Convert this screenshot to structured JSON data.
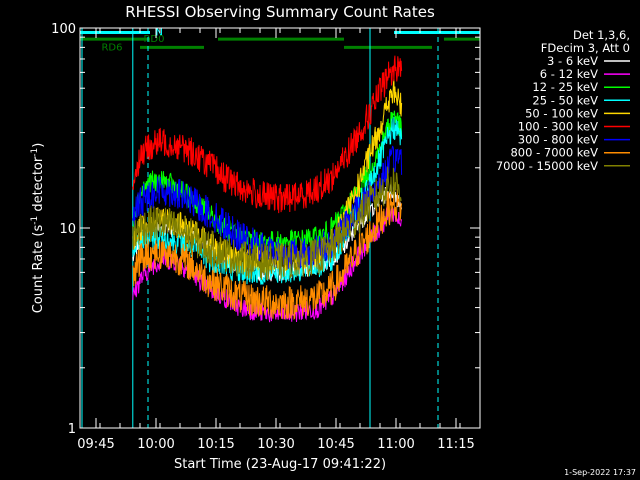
{
  "chart_data": {
    "type": "line",
    "title": "RHESSI Observing Summary Count Rates",
    "xlabel": "Start Time (23-Aug-17 09:41:22)",
    "ylabel_main": "Count Rate (s",
    "ylabel_sup1": "-1",
    "ylabel_mid": " detector",
    "ylabel_sup2": "-1",
    "ylabel_end": ")",
    "yscale": "log",
    "ylim": [
      1,
      100
    ],
    "y_ticks": [
      {
        "value": 1,
        "label": "1"
      },
      {
        "value": 10,
        "label": "10"
      },
      {
        "value": 100,
        "label": "100"
      }
    ],
    "xlim_minutes": [
      0,
      100
    ],
    "x_ticks": [
      {
        "minute": 4,
        "label": "09:45"
      },
      {
        "minute": 19,
        "label": "10:00"
      },
      {
        "minute": 34,
        "label": "10:15"
      },
      {
        "minute": 49,
        "label": "10:30"
      },
      {
        "minute": 64,
        "label": "10:45"
      },
      {
        "minute": 79,
        "label": "11:00"
      },
      {
        "minute": 94,
        "label": "11:15"
      }
    ],
    "legend_header": [
      "Det 1,3,6,",
      "FDecim 3, Att 0"
    ],
    "legend_position": "right",
    "data_x_range": [
      13.2,
      80.5
    ],
    "series": [
      {
        "name": "3 - 6 keV",
        "color": "#ffffff",
        "x": [
          13.2,
          15,
          18,
          21,
          24,
          28,
          32,
          36,
          40,
          45,
          50,
          55,
          60,
          63,
          66,
          69,
          72,
          75,
          77,
          78.5,
          79.5,
          80.5
        ],
        "y": [
          7,
          9,
          10,
          10,
          10,
          9,
          8,
          7,
          6.5,
          6,
          6,
          6.2,
          6.5,
          7,
          8,
          10,
          12,
          14,
          15,
          15.5,
          14,
          13
        ]
      },
      {
        "name": "6 - 12 keV",
        "color": "#ff00ff",
        "x": [
          13.2,
          15,
          18,
          21,
          24,
          28,
          32,
          36,
          40,
          45,
          50,
          55,
          60,
          63,
          66,
          69,
          72,
          75,
          77,
          78.5,
          79.5,
          80.5
        ],
        "y": [
          4.5,
          5.5,
          6.5,
          7,
          6.8,
          6,
          5,
          4.5,
          4,
          3.8,
          3.7,
          3.8,
          4,
          4.5,
          5.5,
          7,
          8.5,
          10,
          11.5,
          12,
          11,
          10
        ]
      },
      {
        "name": "12 - 25 keV",
        "color": "#00ff00",
        "x": [
          13.2,
          15,
          18,
          21,
          24,
          28,
          32,
          36,
          40,
          45,
          50,
          55,
          60,
          63,
          66,
          69,
          72,
          75,
          77,
          78.5,
          79.5,
          80.5
        ],
        "y": [
          11,
          15,
          17,
          17,
          16,
          14,
          12,
          10,
          9,
          8.5,
          8.5,
          8.7,
          9,
          10,
          12,
          15,
          19,
          25,
          32,
          38,
          34,
          30
        ]
      },
      {
        "name": "25 - 50 keV",
        "color": "#00ffff",
        "x": [
          13.2,
          15,
          18,
          21,
          24,
          28,
          32,
          36,
          40,
          45,
          50,
          55,
          60,
          63,
          66,
          69,
          72,
          75,
          77,
          78.5,
          79.5,
          80.5
        ],
        "y": [
          7.5,
          8.5,
          9,
          9,
          8.5,
          8,
          7,
          6.5,
          6,
          6,
          6,
          6.2,
          6.5,
          7,
          9,
          12,
          16,
          22,
          28,
          32,
          30,
          28
        ]
      },
      {
        "name": "50 - 100 keV",
        "color": "#ffd700",
        "x": [
          13.2,
          15,
          18,
          21,
          24,
          28,
          32,
          36,
          40,
          45,
          50,
          55,
          60,
          63,
          66,
          69,
          72,
          75,
          77,
          78.5,
          79.5,
          80.5
        ],
        "y": [
          8.5,
          10,
          11,
          11,
          10.5,
          9.5,
          8.5,
          7.5,
          7,
          7,
          7,
          7.2,
          7.5,
          8.5,
          11,
          15,
          22,
          32,
          42,
          48,
          44,
          40
        ]
      },
      {
        "name": "100 - 300 keV",
        "color": "#ff0000",
        "x": [
          13.2,
          15,
          18,
          21,
          24,
          28,
          32,
          36,
          40,
          45,
          50,
          55,
          60,
          63,
          66,
          69,
          72,
          75,
          77,
          78.5,
          79.5,
          80.5
        ],
        "y": [
          17,
          23,
          26,
          27,
          26,
          24,
          21,
          18,
          16,
          14.5,
          14,
          14.5,
          16,
          18,
          22,
          28,
          36,
          48,
          58,
          62,
          64,
          66
        ]
      },
      {
        "name": "300 - 800 keV",
        "color": "#0000ff",
        "x": [
          13.2,
          15,
          18,
          21,
          24,
          28,
          32,
          36,
          40,
          45,
          50,
          55,
          60,
          63,
          66,
          69,
          72,
          75,
          77,
          78.5,
          79.5,
          80.5
        ],
        "y": [
          11,
          13.5,
          15,
          15.5,
          15,
          13.5,
          12,
          10.5,
          9,
          8,
          7.5,
          7.5,
          7.8,
          8.5,
          10,
          12,
          14.5,
          17,
          20,
          22,
          23,
          22
        ]
      },
      {
        "name": "800 - 7000 keV",
        "color": "#ff8c00",
        "x": [
          13.2,
          15,
          18,
          21,
          24,
          28,
          32,
          36,
          40,
          45,
          50,
          55,
          60,
          63,
          66,
          69,
          72,
          75,
          77,
          78.5,
          79.5,
          80.5
        ],
        "y": [
          6,
          7,
          7.5,
          7.5,
          7.2,
          6.5,
          5.5,
          5,
          4.5,
          4.3,
          4.2,
          4.3,
          4.5,
          5,
          6,
          7.5,
          9,
          11,
          12.5,
          13,
          13,
          12.5
        ]
      },
      {
        "name": "7000 - 15000 keV",
        "color": "#808000",
        "x": [
          13.2,
          15,
          18,
          21,
          24,
          28,
          32,
          36,
          40,
          45,
          50,
          55,
          60,
          63,
          66,
          69,
          72,
          75,
          77,
          78.5,
          79.5,
          80.5
        ],
        "y": [
          9,
          10,
          10.5,
          10.5,
          10,
          9,
          8,
          7.5,
          7,
          6.8,
          6.8,
          7,
          7.2,
          8,
          9.5,
          11,
          13,
          15,
          16.5,
          17,
          16,
          15
        ]
      }
    ],
    "flag_bars": [
      {
        "label": "N",
        "color": "#00ffff",
        "level": 95,
        "label_at": 19.8,
        "segments": [
          [
            0,
            17.5
          ],
          [
            78.5,
            100
          ]
        ]
      },
      {
        "label": "RD0",
        "color": "#008000",
        "level": 88,
        "label_at": 18.5,
        "segments": [
          [
            0,
            17.5
          ],
          [
            34.5,
            66
          ],
          [
            91,
            100
          ]
        ]
      },
      {
        "label": "RD6",
        "color": "#008000",
        "level": 80,
        "label_at": 8.0,
        "segments": [
          [
            15,
            31
          ],
          [
            66,
            88
          ]
        ]
      }
    ],
    "vertical_markers": [
      {
        "minute": 0.5,
        "style": "solid",
        "color": "#00ffff"
      },
      {
        "minute": 13.2,
        "style": "solid",
        "color": "#00ffff"
      },
      {
        "minute": 17.0,
        "style": "dashed",
        "color": "#00ffff"
      },
      {
        "minute": 72.5,
        "style": "solid",
        "color": "#00ffff"
      },
      {
        "minute": 89.5,
        "style": "dashed",
        "color": "#00ffff"
      }
    ],
    "footer_timestamp": "1-Sep-2022 17:37"
  }
}
